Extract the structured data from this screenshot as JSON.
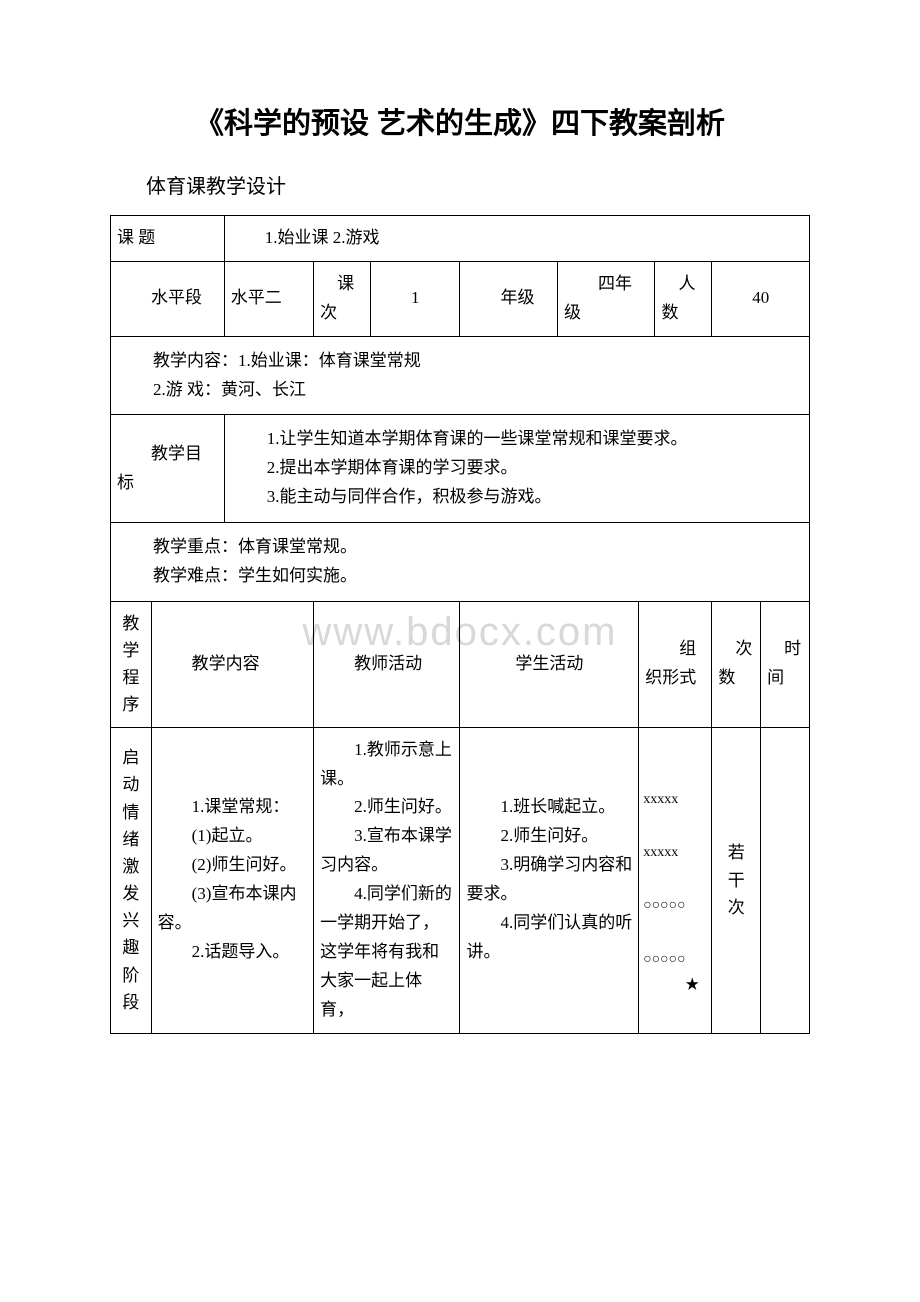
{
  "document": {
    "title": "《科学的预设 艺术的生成》四下教案剖析",
    "subtitle": "体育课教学设计",
    "watermark": "www.bdocx.com"
  },
  "row1": {
    "topic_label": "课 题",
    "topic_value": "　　1.始业课 2.游戏"
  },
  "row2": {
    "level_label": "　　水平段",
    "level_value": "水平二",
    "session_label": "　课次",
    "session_value": "1",
    "grade_label": "　　年级",
    "grade_value": "　　四年级",
    "count_label": "　人数",
    "count_value": "40"
  },
  "content_row": {
    "line1": "　　教学内容：1.始业课：体育课堂常规",
    "line2": "　　2.游 戏：黄河、长江"
  },
  "objectives": {
    "label": "　　教学目标",
    "item1": "　　1.让学生知道本学期体育课的一些课堂常规和课堂要求。",
    "item2": "　　2.提出本学期体育课的学习要求。",
    "item3": "　　3.能主动与同伴合作，积极参与游戏。"
  },
  "keypoints": {
    "line1": "　　教学重点：体育课堂常规。",
    "line2": "　　教学难点：学生如何实施。"
  },
  "headers": {
    "col1": "　教学程序",
    "col2": "　　教学内容",
    "col3": "　　教师活动",
    "col4": "学生活动",
    "col5": "　　组织形式",
    "col6": "　次数",
    "col7": "　时间"
  },
  "stage1": {
    "name": "启动情绪激发兴趣阶段",
    "content": "　　1.课堂常规：\n　　(1)起立。\n　　(2)师生问好。\n　　(3)宣布本课内容。\n　　2.话题导入。",
    "teacher": "　　1.教师示意上课。\n　　2.师生问好。\n　　3.宣布本课学习内容。\n　　4.同学们新的一学期开始了，这学年将有我和大家一起上体育，",
    "student": "　　1.班长喊起立。\n　　2.师生问好。\n　　3.明确学习内容和要求。\n　　4.同学们认真的听讲。",
    "formation": "　　xxxxx\n　　xxxxx\n　　○○○○○\n　　○○○○○\n　　　★",
    "count": "　若干次",
    "time": ""
  }
}
